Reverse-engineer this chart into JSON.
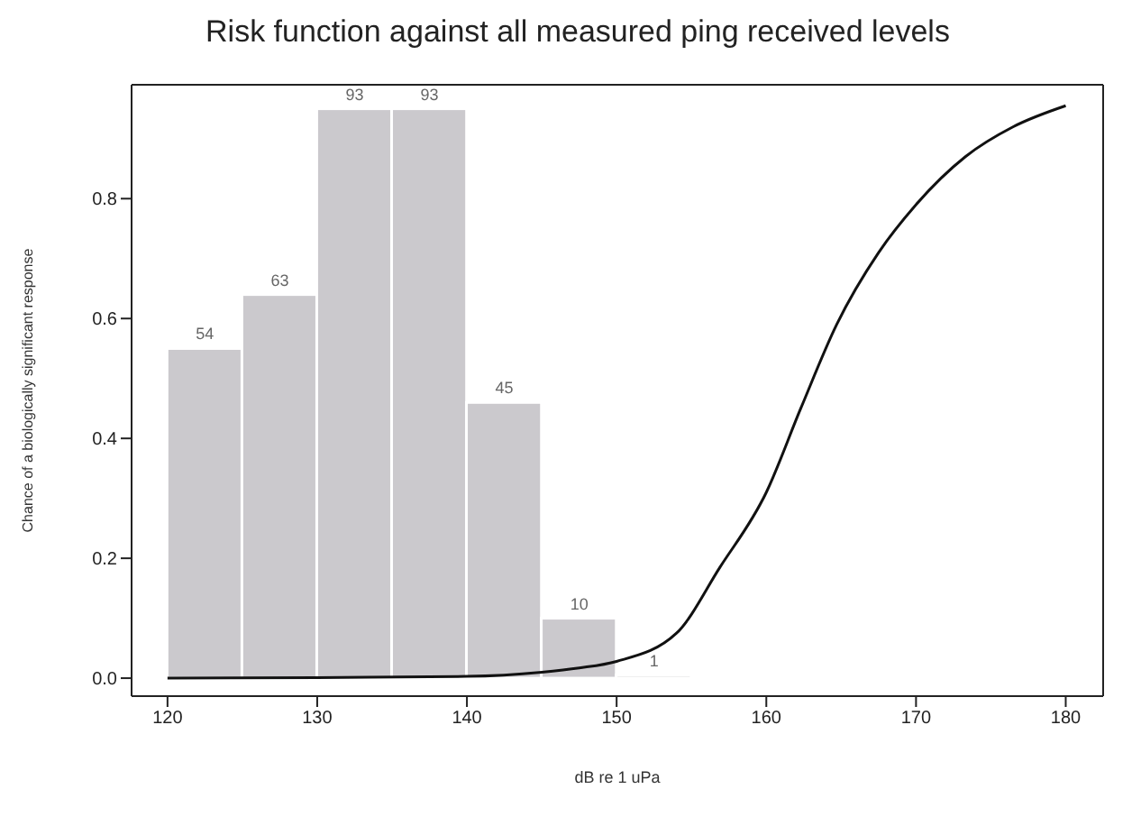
{
  "chart_data": {
    "type": "histogram",
    "title": "Risk function against all measured ping received levels",
    "xlabel": "dB re 1 uPa",
    "ylabel": "Chance of a biologically significant response",
    "series": [
      {
        "bins": [
          120,
          125,
          130,
          135,
          140,
          145,
          150,
          155
        ],
        "values": [
          0.55,
          0.64,
          0.95,
          0.95,
          0.46,
          0.1,
          0.005
        ],
        "color": "#cbc9cd"
      },
      {
        "type": "line",
        "color": "#111111",
        "x": [
          120,
          130,
          140,
          145,
          147.5,
          150,
          154,
          156.9,
          160,
          162.3,
          164.7,
          167.5,
          170,
          173.3,
          176.5,
          180
        ],
        "values": [
          0,
          0.001,
          0.003,
          0.01,
          0.017,
          0.028,
          0.075,
          0.185,
          0.31,
          0.45,
          0.59,
          0.71,
          0.79,
          0.87,
          0.92,
          0.955
        ]
      }
    ],
    "xlim": [
      117.6,
      182.5
    ],
    "xticks": [
      120,
      130,
      140,
      150,
      160,
      170,
      180
    ],
    "ylim": [
      -0.03,
      0.99
    ],
    "yticks": [
      {
        "value": 0,
        "label": "0.0"
      },
      {
        "value": 0.2,
        "label": "0.2"
      },
      {
        "value": 0.4,
        "label": "0.4"
      },
      {
        "value": 0.6,
        "label": "0.6"
      },
      {
        "value": 0.8,
        "label": "0.8"
      }
    ],
    "annotations": [
      {
        "text": "54",
        "x": 122.5,
        "y": 0.55
      },
      {
        "text": "63",
        "x": 127.5,
        "y": 0.64
      },
      {
        "text": "93",
        "x": 132.5,
        "y": 0.95
      },
      {
        "text": "93",
        "x": 137.5,
        "y": 0.95
      },
      {
        "text": "45",
        "x": 142.5,
        "y": 0.46
      },
      {
        "text": "10",
        "x": 147.5,
        "y": 0.1
      },
      {
        "text": "1",
        "x": 152.5,
        "y": 0.005
      }
    ],
    "grid": false,
    "legend": false
  }
}
